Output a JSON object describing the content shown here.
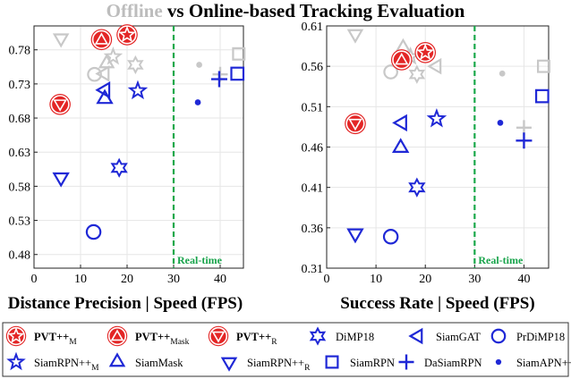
{
  "title": {
    "part1": "Offline",
    "part2": " vs Online-based Tracking Evaluation"
  },
  "colors": {
    "red": "#e32626",
    "blue": "#1f28d6",
    "gray": "#c8c8c8",
    "green": "#19a84a"
  },
  "chart_data": [
    {
      "type": "scatter",
      "xlabel": "Distance Precision | Speed (FPS)",
      "xlim": [
        0,
        45
      ],
      "ylim": [
        0.46,
        0.815
      ],
      "xticks": [
        "0",
        "10",
        "20",
        "30",
        "40"
      ],
      "yticks": [
        "0.48",
        "0.53",
        "0.58",
        "0.63",
        "0.68",
        "0.73",
        "0.78"
      ],
      "xtick_values": [
        0,
        10,
        20,
        30,
        40
      ],
      "ytick_values": [
        0.48,
        0.53,
        0.58,
        0.63,
        0.68,
        0.73,
        0.78
      ],
      "realtime": {
        "x": 30,
        "label": "Real-time"
      },
      "offline_points": [
        {
          "marker": "tri_down",
          "x": 5.8,
          "y": 0.797
        },
        {
          "marker": "circle",
          "x": 13.0,
          "y": 0.744
        },
        {
          "marker": "tri_left",
          "x": 15.2,
          "y": 0.745
        },
        {
          "marker": "star",
          "x": 17.0,
          "y": 0.77
        },
        {
          "marker": "tri_up",
          "x": 15.6,
          "y": 0.76
        },
        {
          "marker": "star6",
          "x": 21.8,
          "y": 0.758
        },
        {
          "marker": "dot",
          "x": 35.5,
          "y": 0.758
        },
        {
          "marker": "plus",
          "x": 40.0,
          "y": 0.744
        },
        {
          "marker": "square",
          "x": 44.0,
          "y": 0.774
        }
      ],
      "online_points": [
        {
          "marker": "circle_star",
          "color": "red",
          "x": 20.0,
          "y": 0.802
        },
        {
          "marker": "circle_triup",
          "color": "red",
          "x": 14.5,
          "y": 0.795
        },
        {
          "marker": "circle_tridown",
          "color": "red",
          "x": 5.6,
          "y": 0.7
        },
        {
          "marker": "tri_left",
          "color": "blue",
          "x": 15.3,
          "y": 0.721
        },
        {
          "marker": "tri_up",
          "color": "blue",
          "x": 15.2,
          "y": 0.708
        },
        {
          "marker": "star",
          "color": "blue",
          "x": 22.3,
          "y": 0.72
        },
        {
          "marker": "star6",
          "color": "blue",
          "x": 18.3,
          "y": 0.607
        },
        {
          "marker": "tri_down",
          "color": "blue",
          "x": 5.8,
          "y": 0.593
        },
        {
          "marker": "circle",
          "color": "blue",
          "x": 12.8,
          "y": 0.513
        },
        {
          "marker": "dot",
          "color": "blue",
          "x": 35.2,
          "y": 0.703
        },
        {
          "marker": "plus",
          "color": "blue",
          "x": 39.8,
          "y": 0.737
        },
        {
          "marker": "square",
          "color": "blue",
          "x": 43.7,
          "y": 0.745
        }
      ]
    },
    {
      "type": "scatter",
      "xlabel": "Success Rate | Speed (FPS)",
      "xlim": [
        0,
        45
      ],
      "ylim": [
        0.31,
        0.61
      ],
      "xticks": [
        "0",
        "10",
        "20",
        "30",
        "40"
      ],
      "yticks": [
        "0.31",
        "0.36",
        "0.41",
        "0.46",
        "0.51",
        "0.56",
        "0.61"
      ],
      "xtick_values": [
        0,
        10,
        20,
        30,
        40
      ],
      "ytick_values": [
        0.31,
        0.36,
        0.41,
        0.46,
        0.51,
        0.56,
        0.61
      ],
      "realtime": {
        "x": 30,
        "label": "Real-time"
      },
      "offline_points": [
        {
          "marker": "tri_down",
          "x": 5.8,
          "y": 0.6
        },
        {
          "marker": "circle",
          "x": 13.0,
          "y": 0.553
        },
        {
          "marker": "tri_up",
          "x": 15.5,
          "y": 0.583
        },
        {
          "marker": "star",
          "x": 17.0,
          "y": 0.572
        },
        {
          "marker": "star6",
          "x": 18.3,
          "y": 0.55
        },
        {
          "marker": "tri_left",
          "x": 22.3,
          "y": 0.56
        },
        {
          "marker": "dot",
          "x": 35.6,
          "y": 0.551
        },
        {
          "marker": "plus",
          "x": 40.0,
          "y": 0.484
        },
        {
          "marker": "square",
          "x": 44.0,
          "y": 0.56
        }
      ],
      "online_points": [
        {
          "marker": "circle_star",
          "color": "red",
          "x": 20.0,
          "y": 0.577
        },
        {
          "marker": "circle_triup",
          "color": "red",
          "x": 15.2,
          "y": 0.568
        },
        {
          "marker": "circle_tridown",
          "color": "red",
          "x": 5.8,
          "y": 0.489
        },
        {
          "marker": "tri_left",
          "color": "blue",
          "x": 15.3,
          "y": 0.49
        },
        {
          "marker": "tri_up",
          "color": "blue",
          "x": 15.0,
          "y": 0.459
        },
        {
          "marker": "star",
          "color": "blue",
          "x": 22.3,
          "y": 0.495
        },
        {
          "marker": "star6",
          "color": "blue",
          "x": 18.3,
          "y": 0.41
        },
        {
          "marker": "tri_down",
          "color": "blue",
          "x": 5.8,
          "y": 0.353
        },
        {
          "marker": "circle",
          "color": "blue",
          "x": 13.0,
          "y": 0.349
        },
        {
          "marker": "dot",
          "color": "blue",
          "x": 35.2,
          "y": 0.49
        },
        {
          "marker": "plus",
          "color": "blue",
          "x": 40.0,
          "y": 0.468
        },
        {
          "marker": "square",
          "color": "blue",
          "x": 43.7,
          "y": 0.523
        }
      ]
    }
  ],
  "legend": [
    {
      "marker": "circle_star",
      "color": "red",
      "label": "PVT++",
      "sub": "M",
      "bold": true
    },
    {
      "marker": "circle_triup",
      "color": "red",
      "label": "PVT++",
      "sub": "Mask",
      "bold": true
    },
    {
      "marker": "circle_tridown",
      "color": "red",
      "label": "PVT++",
      "sub": "R",
      "bold": true
    },
    {
      "marker": "star6",
      "color": "blue",
      "label": "DiMP18",
      "sub": "",
      "bold": false
    },
    {
      "marker": "tri_left",
      "color": "blue",
      "label": "SiamGAT",
      "sub": "",
      "bold": false
    },
    {
      "marker": "circle",
      "color": "blue",
      "label": "PrDiMP18",
      "sub": "",
      "bold": false
    },
    {
      "marker": "star",
      "color": "blue",
      "label": "SiamRPN++",
      "sub": "M",
      "bold": false
    },
    {
      "marker": "tri_up",
      "color": "blue",
      "label": "SiamMask",
      "sub": "",
      "bold": false
    },
    {
      "marker": "tri_down",
      "color": "blue",
      "label": "SiamRPN++",
      "sub": "R",
      "bold": false
    },
    {
      "marker": "square",
      "color": "blue",
      "label": "SiamRPN",
      "sub": "",
      "bold": false
    },
    {
      "marker": "plus",
      "color": "blue",
      "label": "DaSiamRPN",
      "sub": "",
      "bold": false
    },
    {
      "marker": "dot",
      "color": "blue",
      "label": "SiamAPN++",
      "sub": "",
      "bold": false
    }
  ]
}
